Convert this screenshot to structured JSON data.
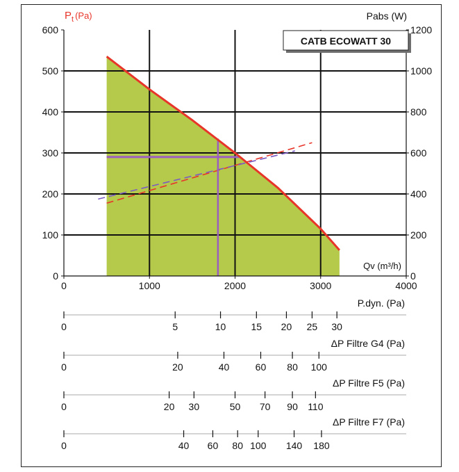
{
  "chart_data": {
    "type": "area",
    "title": "CATB ECOWATT 30",
    "y_left_label": "(Pa)",
    "y_left_symbol": "P",
    "y_left_symbol_sub": "t",
    "y_right_label": "Pabs (W)",
    "x_label": "Qv (m³/h)",
    "xlim": [
      0,
      4000
    ],
    "ylim_left": [
      0,
      600
    ],
    "ylim_right": [
      0,
      1200
    ],
    "x_ticks": [
      0,
      1000,
      2000,
      3000,
      4000
    ],
    "y_left_ticks": [
      0,
      100,
      200,
      300,
      400,
      500,
      600
    ],
    "y_right_ticks": [
      0,
      200,
      400,
      600,
      800,
      1000,
      1200
    ],
    "grid": true,
    "colors": {
      "pressure_curve": "#e8352a",
      "fill": "#b5c94a",
      "power_red": "#e8352a",
      "power_purple": "#7a5bc4",
      "operating_point": "#9b5fc0",
      "axis_label_left": "#e8352a"
    },
    "series": [
      {
        "kind": "pressure_curve",
        "axis": "left",
        "style": "solid",
        "points": [
          [
            500,
            535
          ],
          [
            1000,
            455
          ],
          [
            1500,
            380
          ],
          [
            2000,
            300
          ],
          [
            2500,
            215
          ],
          [
            3000,
            115
          ],
          [
            3220,
            63
          ]
        ]
      },
      {
        "kind": "power_curve",
        "axis": "right",
        "style": "dashed",
        "color": "red",
        "points": [
          [
            500,
            355
          ],
          [
            2900,
            650
          ]
        ]
      },
      {
        "kind": "power_curve",
        "axis": "right",
        "style": "dashed",
        "color": "purple",
        "points": [
          [
            400,
            375
          ],
          [
            2700,
            610
          ]
        ]
      }
    ],
    "operating_point": {
      "x": 1800,
      "y": 290,
      "y_max": 335
    }
  },
  "scales": [
    {
      "label": "P.dyn. (Pa)",
      "ticks": [
        {
          "x": 0,
          "label": "0"
        },
        {
          "x": 1300,
          "label": "5"
        },
        {
          "x": 1830,
          "label": "10"
        },
        {
          "x": 2250,
          "label": "15"
        },
        {
          "x": 2600,
          "label": "20"
        },
        {
          "x": 2900,
          "label": "25"
        },
        {
          "x": 3190,
          "label": "30"
        }
      ]
    },
    {
      "label": "ΔP Filtre G4 (Pa)",
      "ticks": [
        {
          "x": 0,
          "label": "0"
        },
        {
          "x": 1330,
          "label": "20"
        },
        {
          "x": 1870,
          "label": "40"
        },
        {
          "x": 2300,
          "label": "60"
        },
        {
          "x": 2670,
          "label": "80"
        },
        {
          "x": 2980,
          "label": "100"
        }
      ]
    },
    {
      "label": "ΔP Filtre F5 (Pa)",
      "ticks": [
        {
          "x": 0,
          "label": "0"
        },
        {
          "x": 1230,
          "label": "20"
        },
        {
          "x": 1520,
          "label": "30"
        },
        {
          "x": 2000,
          "label": "50"
        },
        {
          "x": 2350,
          "label": "70"
        },
        {
          "x": 2670,
          "label": "90"
        },
        {
          "x": 2940,
          "label": "110"
        }
      ]
    },
    {
      "label": "ΔP Filtre F7 (Pa)",
      "ticks": [
        {
          "x": 0,
          "label": "0"
        },
        {
          "x": 1400,
          "label": "40"
        },
        {
          "x": 1740,
          "label": "60"
        },
        {
          "x": 2030,
          "label": "80"
        },
        {
          "x": 2270,
          "label": "100"
        },
        {
          "x": 2690,
          "label": "140"
        },
        {
          "x": 3010,
          "label": "180"
        }
      ]
    }
  ]
}
